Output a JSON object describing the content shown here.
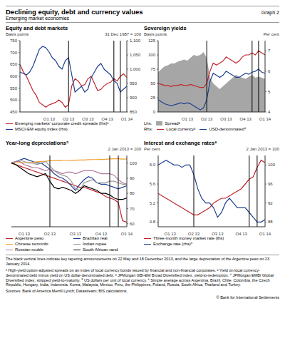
{
  "header": {
    "title": "Declining equity, debt and currency values",
    "subtitle": "Emerging market economies",
    "graph_label": "Graph 2"
  },
  "chart_data": [
    {
      "type": "line",
      "title": "Equity and debt markets",
      "ylabel": "Basis points",
      "y2label": "31 Dec 1987 = 100",
      "categories": [
        null,
        null,
        null,
        null,
        null,
        null,
        null,
        null,
        null,
        "Q1 13",
        null,
        null,
        null,
        null,
        null,
        "Q2 13",
        null,
        null,
        null,
        null,
        null,
        "Q3 13",
        null,
        null,
        null,
        null,
        null,
        "Q4 13",
        null,
        null,
        null,
        null,
        null,
        "Q1 14"
      ],
      "ylim": [
        450,
        750
      ],
      "yticks": [
        450,
        500,
        550,
        600,
        650,
        700,
        750
      ],
      "y2lim": [
        850,
        1100
      ],
      "y2ticks": [
        850,
        900,
        950,
        {
          "value": 1000,
          "label": "1,000"
        },
        {
          "value": 1050,
          "label": "1,050"
        },
        {
          "value": 1100,
          "label": "1,100"
        }
      ],
      "reference_lines": [
        15,
        29,
        31
      ],
      "series": [
        {
          "name": "Emerging markets' corporate credit spreads (lhs)¹",
          "color": "#c0272d",
          "values": [
            650,
            620,
            600,
            570,
            540,
            520,
            490,
            480,
            470,
            480,
            485,
            490,
            500,
            490,
            470,
            480,
            560,
            590,
            580,
            560,
            565,
            590,
            600,
            570,
            540,
            545,
            560,
            570,
            575,
            590,
            580,
            600,
            610,
            595
          ]
        },
        {
          "name": "MSCI-EM equity index (rhs)",
          "color": "#1f3f8f",
          "axis": "y2",
          "values": [
            990,
            985,
            980,
            990,
            1010,
            1040,
            1070,
            1080,
            1075,
            1060,
            1040,
            1030,
            1010,
            1000,
            1030,
            1040,
            980,
            920,
            930,
            940,
            920,
            930,
            970,
            990,
            1010,
            1020,
            1000,
            990,
            980,
            960,
            950,
            920,
            930,
            940
          ]
        }
      ]
    },
    {
      "type": "line",
      "title": "Sovereign yields",
      "ylabel": "Basis points",
      "y2label": "Per cent",
      "categories": [
        null,
        null,
        null,
        null,
        null,
        null,
        null,
        null,
        null,
        "Q1 13",
        null,
        null,
        null,
        null,
        null,
        "Q2 13",
        null,
        null,
        null,
        null,
        null,
        "Q3 13",
        null,
        null,
        null,
        null,
        null,
        "Q4 13",
        null,
        null,
        null,
        null,
        null,
        "Q1 14"
      ],
      "ylim": [
        0,
        125
      ],
      "yticks": [
        0,
        25,
        50,
        75,
        100,
        125
      ],
      "y2lim": [
        4,
        7.5
      ],
      "y2ticks": [
        4,
        5,
        6,
        7
      ],
      "reference_lines": [
        15,
        29,
        31
      ],
      "legend_headers": {
        "y": "Lhs:",
        "y2": "Rhs:"
      },
      "series": [
        {
          "name": "Spread²",
          "type": "area",
          "color": "#a6a6a6",
          "values": [
            70,
            75,
            80,
            82,
            85,
            85,
            88,
            90,
            92,
            90,
            95,
            100,
            98,
            100,
            105,
            95,
            60,
            50,
            45,
            40,
            45,
            50,
            55,
            60,
            65,
            62,
            60,
            58,
            62,
            65,
            60,
            62,
            60,
            58
          ]
        },
        {
          "name": "Local currency³",
          "color": "#c0272d",
          "axis": "y2",
          "values": [
            5.4,
            5.35,
            5.3,
            5.3,
            5.25,
            5.3,
            5.3,
            5.35,
            5.3,
            5.3,
            5.35,
            5.3,
            5.25,
            5.2,
            5.2,
            5.4,
            6,
            6.4,
            6.3,
            6.4,
            6.5,
            6.7,
            6.6,
            6.5,
            6.4,
            6.5,
            6.7,
            6.8,
            6.8,
            6.9,
            6.8,
            7,
            6.9,
            6.8
          ]
        },
        {
          "name": "USD-denominated⁴",
          "color": "#1f3f8f",
          "axis": "y2",
          "values": [
            4.6,
            4.5,
            4.4,
            4.35,
            4.3,
            4.35,
            4.4,
            4.45,
            4.4,
            4.45,
            4.4,
            4.3,
            4.2,
            4.1,
            4.2,
            4.6,
            5.5,
            5.9,
            5.8,
            5.7,
            5.8,
            6,
            5.9,
            5.8,
            5.7,
            5.7,
            5.8,
            5.9,
            5.85,
            5.95,
            6,
            6.1,
            5.95,
            5.9
          ]
        }
      ]
    },
    {
      "type": "line",
      "title": "Year-long depreciations⁵",
      "y2label": "2 Jan 2013 = 100",
      "categories": [
        null,
        null,
        null,
        "Q1 13",
        null,
        null,
        null,
        null,
        null,
        "Q2 13",
        null,
        null,
        null,
        null,
        null,
        "Q3 13",
        null,
        null,
        null,
        null,
        null,
        "Q4 13",
        null,
        null,
        null,
        null,
        null,
        "Q1 14"
      ],
      "y2lim": [
        58,
        105
      ],
      "y2ticks": [
        60,
        70,
        80,
        90,
        100
      ],
      "reference_lines": [
        9,
        23,
        25
      ],
      "series": [
        {
          "name": "Argentine peso",
          "color": "#c0272d",
          "axis": "y2",
          "values": [
            100,
            99,
            98,
            97,
            96,
            95,
            94,
            93,
            92,
            91,
            90,
            89,
            88,
            87,
            86,
            85,
            84,
            84,
            83,
            82,
            81,
            80,
            78,
            77,
            76,
            74,
            62,
            61
          ]
        },
        {
          "name": "Brazilian real",
          "color": "#1f3f8f",
          "axis": "y2",
          "values": [
            100,
            101,
            102,
            103,
            102,
            101,
            100,
            100,
            98,
            96,
            93,
            91,
            90,
            88,
            85,
            82,
            86,
            89,
            91,
            90,
            87,
            86,
            86,
            85,
            84,
            83,
            84,
            85
          ]
        },
        {
          "name": "Chinese renminbi",
          "color": "#f0a030",
          "axis": "y2",
          "values": [
            100,
            100.2,
            100.3,
            100.2,
            100.3,
            100.5,
            100.8,
            101,
            101.2,
            101.5,
            101.5,
            101.8,
            101.6,
            101.7,
            101.8,
            101.9,
            102,
            102,
            102.2,
            102.3,
            102.3,
            102.4,
            102.5,
            102.7,
            102.8,
            102.8,
            102.6,
            102.7
          ]
        },
        {
          "name": "Indian rupee",
          "color": "#9a9a9a",
          "axis": "y2",
          "values": [
            100,
            101,
            102,
            101,
            100,
            100,
            99,
            100,
            101,
            98,
            95,
            93,
            92,
            91,
            88,
            83,
            82,
            87,
            88,
            89,
            87,
            87,
            87,
            88,
            88,
            87,
            86,
            86
          ]
        },
        {
          "name": "Russian rouble",
          "color": "#b07aa1",
          "axis": "y2",
          "values": [
            100,
            101,
            101,
            99,
            98,
            97,
            97,
            96,
            95,
            96,
            95,
            94,
            93,
            94,
            94,
            93,
            94,
            95,
            95,
            95,
            94,
            93,
            93,
            93,
            92,
            89,
            87,
            86
          ]
        },
        {
          "name": "South African rand",
          "color": "#000000",
          "axis": "y2",
          "values": [
            100,
            99,
            97,
            95,
            93,
            92,
            91,
            92,
            93,
            88,
            84,
            83,
            84,
            83,
            82,
            80,
            82,
            85,
            84,
            83,
            82,
            80,
            80,
            79,
            77,
            76,
            76,
            77
          ]
        }
      ]
    },
    {
      "type": "line",
      "title": "Interest and exchange rates⁶",
      "ylabel": "Per cent",
      "y2label": "2 Jan 2013 = 100",
      "categories": [
        null,
        null,
        null,
        "Q1 13",
        null,
        null,
        null,
        null,
        null,
        "Q2 13",
        null,
        null,
        null,
        null,
        null,
        "Q3 13",
        null,
        null,
        null,
        null,
        null,
        "Q4 13",
        null,
        null,
        null,
        null,
        null,
        "Q1 14"
      ],
      "ylim": [
        4.7,
        6.2
      ],
      "yticks": [
        4.8,
        5.2,
        5.6,
        {
          "value": 6,
          "label": "6.0"
        }
      ],
      "y2lim": [
        87,
        102
      ],
      "y2ticks": [
        88,
        92,
        96,
        100
      ],
      "reference_lines": [
        9,
        23,
        25
      ],
      "series": [
        {
          "name": "Three-month money market rate (lhs)",
          "color": "#c0272d",
          "values": [
            5.4,
            5.35,
            5.3,
            5.25,
            5.2,
            5.15,
            5.1,
            5.05,
            5,
            4.95,
            4.95,
            5,
            5.05,
            5.1,
            5.2,
            5.25,
            5.3,
            5.3,
            5.35,
            5.4,
            5.45,
            5.5,
            5.6,
            5.7,
            5.75,
            5.95,
            6.1,
            6.05
          ]
        },
        {
          "name": "Exchange rate (rhs)⁵",
          "color": "#1f3f8f",
          "axis": "y2",
          "values": [
            100,
            100.5,
            101,
            100.5,
            100,
            100,
            99.5,
            100,
            100,
            98,
            95,
            93,
            92,
            92,
            91,
            89,
            90,
            92,
            93,
            92,
            91,
            91,
            91,
            90,
            89,
            88,
            88,
            88.5
          ]
        }
      ]
    }
  ],
  "notes": [
    "The black vertical lines indicate key tapering announcements on 22 May and 18 December 2013, and the large depreciation of the Argentine peso on 23 January 2014.",
    "¹ High-yield option-adjusted spreads on an index of local currency bonds issued by financial and non-financial corporates. ² Yield on local currency-denominated debt minus yield on US dollar-denominated debt. ³ JPMorgan GBI-EM Broad Diversified index, yield-to-redemption. ⁴ JPMorgan EMBI Global Diversified index, stripped yield-to-maturity. ⁵ US dollars per unit of local currency. ⁶ Simple average across Argentina, Brazil, Chile, Colombia, the Czech Republic, Hungary, India, Indonesia, Korea, Malaysia, Mexico, Peru, the Philippines, Poland, Russia, South Africa, Thailand and Turkey."
  ],
  "sources": "Sources: Bank of America Merrill Lynch; Datastream; BIS calculations.",
  "copyright": "© Bank for International Settlements"
}
